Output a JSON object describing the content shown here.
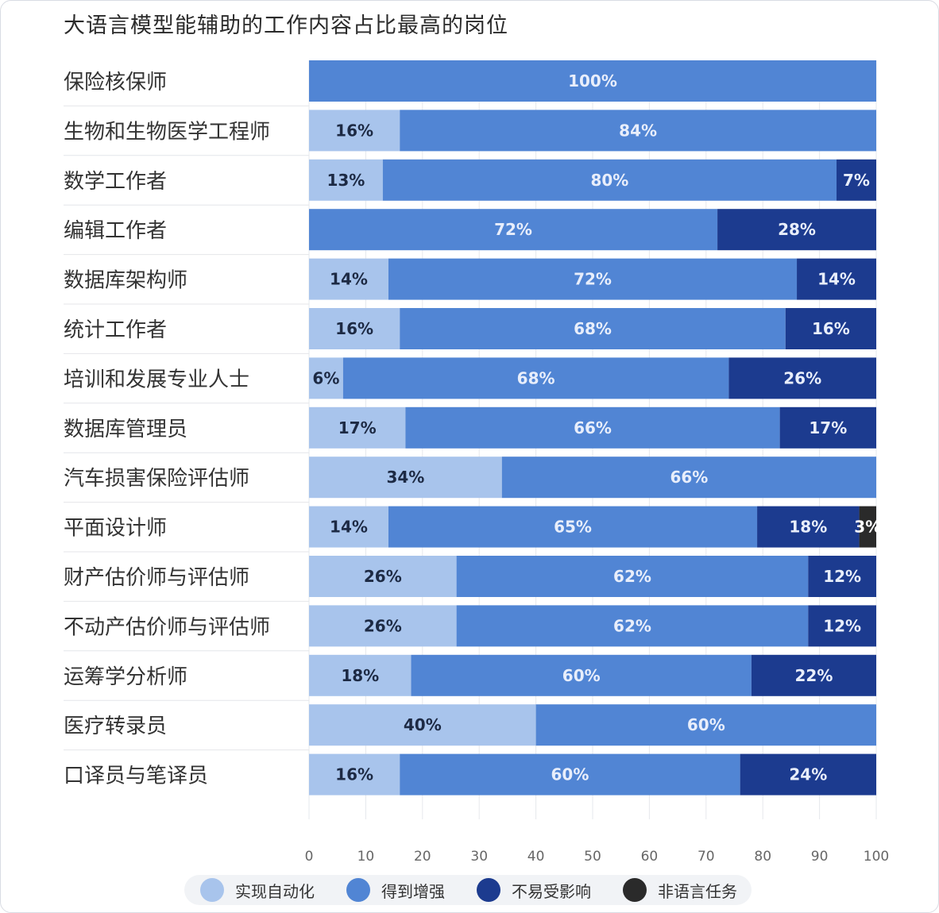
{
  "chart_title": "大语言模型能辅助的工作内容占比最高的岗位",
  "colors": {
    "automation": "#a8c4ec",
    "augmented": "#5185d4",
    "unaffected": "#1c3b8f",
    "non_language": "#2a2a2a"
  },
  "legend": [
    {
      "key": "automation",
      "label": "实现自动化",
      "color": "#a8c4ec"
    },
    {
      "key": "augmented",
      "label": "得到增强",
      "color": "#5185d4"
    },
    {
      "key": "unaffected",
      "label": "不易受影响",
      "color": "#1c3b8f"
    },
    {
      "key": "non_language",
      "label": "非语言任务",
      "color": "#2a2a2a"
    }
  ],
  "chart_data": {
    "type": "bar",
    "orientation": "horizontal",
    "stacked": true,
    "title": "大语言模型能辅助的工作内容占比最高的岗位",
    "xlim": [
      0,
      100
    ],
    "xticks": [
      0,
      10,
      20,
      30,
      40,
      50,
      60,
      70,
      80,
      90,
      100
    ],
    "grid": true,
    "legend_position": "bottom",
    "categories": [
      "保险核保师",
      "生物和生物医学工程师",
      "数学工作者",
      "编辑工作者",
      "数据库架构师",
      "统计工作者",
      "培训和发展专业人士",
      "数据库管理员",
      "汽车损害保险评估师",
      "平面设计师",
      "财产估价师与评估师",
      "不动产估价师与评估师",
      "运筹学分析师",
      "医疗转录员",
      "口译员与笔译员"
    ],
    "series": [
      {
        "name": "实现自动化",
        "values": [
          0,
          16,
          13,
          0,
          14,
          16,
          6,
          17,
          34,
          14,
          26,
          26,
          18,
          40,
          16
        ]
      },
      {
        "name": "得到增强",
        "values": [
          100,
          84,
          80,
          72,
          72,
          68,
          68,
          66,
          66,
          65,
          62,
          62,
          60,
          60,
          60
        ]
      },
      {
        "name": "不易受影响",
        "values": [
          0,
          0,
          7,
          28,
          14,
          16,
          26,
          17,
          0,
          18,
          12,
          12,
          22,
          0,
          24
        ]
      },
      {
        "name": "非语言任务",
        "values": [
          0,
          0,
          0,
          0,
          0,
          0,
          0,
          0,
          0,
          3,
          0,
          0,
          0,
          0,
          0
        ]
      }
    ],
    "data_labels": [
      [
        "",
        "100%",
        "",
        ""
      ],
      [
        "16%",
        "84%",
        "",
        ""
      ],
      [
        "13%",
        "80%",
        "7%",
        ""
      ],
      [
        "",
        "72%",
        "28%",
        ""
      ],
      [
        "14%",
        "72%",
        "14%",
        ""
      ],
      [
        "16%",
        "68%",
        "16%",
        ""
      ],
      [
        "6%",
        "68%",
        "26%",
        ""
      ],
      [
        "17%",
        "66%",
        "17%",
        ""
      ],
      [
        "34%",
        "66%",
        "",
        ""
      ],
      [
        "14%",
        "65%",
        "18%",
        "3%"
      ],
      [
        "26%",
        "62%",
        "12%",
        ""
      ],
      [
        "26%",
        "62%",
        "12%",
        ""
      ],
      [
        "18%",
        "60%",
        "22%",
        ""
      ],
      [
        "40%",
        "60%",
        "",
        ""
      ],
      [
        "16%",
        "60%",
        "24%",
        ""
      ]
    ]
  }
}
